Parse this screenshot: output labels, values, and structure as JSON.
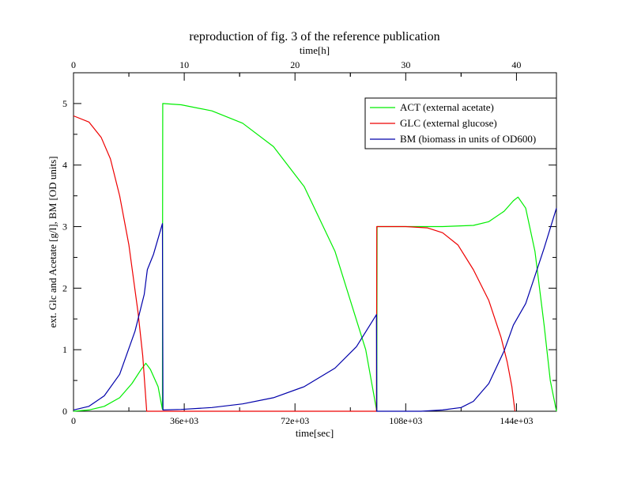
{
  "chart_data": {
    "type": "line",
    "title": "reproduction of fig. 3 of the reference publication",
    "xlabel": "time[sec]",
    "ylabel": "ext. Glc and Acetate [g/l], BM [OD units]",
    "top_xlabel": "time[h]",
    "xlim": [
      0,
      157000
    ],
    "ylim": [
      0,
      5.5
    ],
    "top_xlim_hours": [
      0,
      43.61
    ],
    "x_ticks": [
      {
        "value": 0,
        "label": "0"
      },
      {
        "value": 36000,
        "label": "36e+03"
      },
      {
        "value": 72000,
        "label": "72e+03"
      },
      {
        "value": 108000,
        "label": "108e+03"
      },
      {
        "value": 144000,
        "label": "144e+03"
      }
    ],
    "top_x_ticks": [
      {
        "value": 0,
        "label": "0"
      },
      {
        "value": 10,
        "label": "10"
      },
      {
        "value": 20,
        "label": "20"
      },
      {
        "value": 30,
        "label": "30"
      },
      {
        "value": 40,
        "label": "40"
      }
    ],
    "y_ticks": [
      {
        "value": 0,
        "label": "0"
      },
      {
        "value": 1,
        "label": "1"
      },
      {
        "value": 2,
        "label": "2"
      },
      {
        "value": 3,
        "label": "3"
      },
      {
        "value": 4,
        "label": "4"
      },
      {
        "value": 5,
        "label": "5"
      }
    ],
    "legend_position": "top-right",
    "grid": false,
    "series": [
      {
        "name": "ACT (external acetate)",
        "color": "#00ee00",
        "points": [
          [
            0,
            0
          ],
          [
            5000,
            0.02
          ],
          [
            10000,
            0.08
          ],
          [
            15000,
            0.22
          ],
          [
            19000,
            0.45
          ],
          [
            22000,
            0.68
          ],
          [
            23500,
            0.78
          ],
          [
            25000,
            0.68
          ],
          [
            27500,
            0.4
          ],
          [
            28900,
            0.03
          ],
          [
            28950,
            3.05
          ],
          [
            29000,
            5.0
          ],
          [
            35000,
            4.98
          ],
          [
            45000,
            4.88
          ],
          [
            55000,
            4.68
          ],
          [
            65000,
            4.3
          ],
          [
            75000,
            3.65
          ],
          [
            85000,
            2.6
          ],
          [
            95000,
            1.0
          ],
          [
            98600,
            0.0
          ],
          [
            98700,
            3.0
          ],
          [
            108000,
            3.0
          ],
          [
            120000,
            3.0
          ],
          [
            130000,
            3.02
          ],
          [
            135000,
            3.08
          ],
          [
            140000,
            3.25
          ],
          [
            143000,
            3.42
          ],
          [
            144500,
            3.48
          ],
          [
            147000,
            3.3
          ],
          [
            150000,
            2.6
          ],
          [
            153000,
            1.4
          ],
          [
            155000,
            0.5
          ],
          [
            157000,
            0.0
          ]
        ]
      },
      {
        "name": "GLC (external glucose)",
        "color": "#ee0000",
        "points": [
          [
            0,
            4.8
          ],
          [
            5000,
            4.7
          ],
          [
            9000,
            4.45
          ],
          [
            12000,
            4.1
          ],
          [
            15000,
            3.5
          ],
          [
            18000,
            2.7
          ],
          [
            21000,
            1.6
          ],
          [
            22500,
            0.9
          ],
          [
            23800,
            0.0
          ],
          [
            98500,
            0.0
          ],
          [
            98600,
            3.0
          ],
          [
            108000,
            3.0
          ],
          [
            115000,
            2.98
          ],
          [
            120000,
            2.9
          ],
          [
            125000,
            2.7
          ],
          [
            130000,
            2.3
          ],
          [
            135000,
            1.8
          ],
          [
            139000,
            1.2
          ],
          [
            141000,
            0.8
          ],
          [
            142500,
            0.4
          ],
          [
            143500,
            0.0
          ]
        ]
      },
      {
        "name": "BM (biomass in units of OD600)",
        "color": "#0000aa",
        "points": [
          [
            0,
            0.02
          ],
          [
            5000,
            0.08
          ],
          [
            10000,
            0.25
          ],
          [
            15000,
            0.6
          ],
          [
            20000,
            1.3
          ],
          [
            23000,
            1.9
          ],
          [
            24000,
            2.3
          ],
          [
            26000,
            2.55
          ],
          [
            28900,
            3.05
          ],
          [
            29100,
            0.02
          ],
          [
            35000,
            0.03
          ],
          [
            45000,
            0.06
          ],
          [
            55000,
            0.12
          ],
          [
            65000,
            0.22
          ],
          [
            75000,
            0.4
          ],
          [
            85000,
            0.7
          ],
          [
            92000,
            1.05
          ],
          [
            98500,
            1.57
          ],
          [
            98600,
            0.0
          ],
          [
            113000,
            0.0
          ],
          [
            120000,
            0.02
          ],
          [
            126000,
            0.06
          ],
          [
            130000,
            0.16
          ],
          [
            135000,
            0.45
          ],
          [
            140000,
            0.98
          ],
          [
            143000,
            1.4
          ],
          [
            147000,
            1.75
          ],
          [
            150000,
            2.2
          ],
          [
            153000,
            2.65
          ],
          [
            157000,
            3.3
          ]
        ]
      }
    ]
  }
}
